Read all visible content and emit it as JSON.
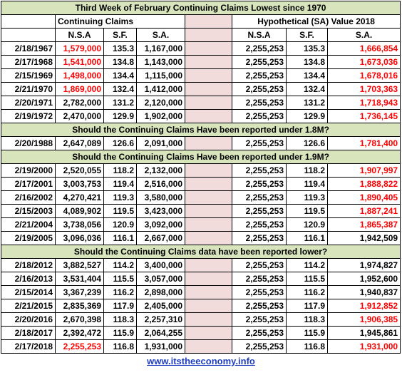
{
  "title": "Third Week of February Continuing Claims Lowest since 1970",
  "headers": {
    "left_group": "Continuing Claims",
    "right_group": "Hypothetical (SA) Value 2018",
    "columns": [
      "N.S.A",
      "S.F.",
      "S.A.",
      "N.S.A",
      "S.F.",
      "S.A."
    ]
  },
  "groups": [
    {
      "rows": [
        {
          "cells": [
            "2/18/1967",
            "1,579,000",
            "135.3",
            "1,167,000",
            "2,255,253",
            "135.3",
            "1,666,854"
          ],
          "red": [
            1,
            6
          ]
        },
        {
          "cells": [
            "2/17/1968",
            "1,541,000",
            "134.8",
            "1,143,000",
            "2,255,253",
            "134.8",
            "1,673,036"
          ],
          "red": [
            1,
            6
          ]
        },
        {
          "cells": [
            "2/15/1969",
            "1,498,000",
            "134.4",
            "1,115,000",
            "2,255,253",
            "134.4",
            "1,678,016"
          ],
          "red": [
            1,
            6
          ]
        },
        {
          "cells": [
            "2/21/1970",
            "1,869,000",
            "132.4",
            "1,412,000",
            "2,255,253",
            "132.4",
            "1,703,363"
          ],
          "red": [
            1,
            6
          ]
        },
        {
          "cells": [
            "2/20/1971",
            "2,782,000",
            "131.2",
            "2,120,000",
            "2,255,253",
            "131.2",
            "1,718,943"
          ],
          "red": [
            6
          ]
        },
        {
          "cells": [
            "2/19/1972",
            "2,470,000",
            "129.9",
            "1,902,000",
            "2,255,253",
            "129.9",
            "1,736,145"
          ],
          "red": [
            6
          ]
        }
      ]
    },
    {
      "heading": "Should the Continuing Claims Have been reported under 1.8M?",
      "rows": [
        {
          "cells": [
            "2/20/1988",
            "2,647,089",
            "126.6",
            "2,091,000",
            "2,255,253",
            "126.6",
            "1,781,400"
          ],
          "red": [
            6
          ]
        }
      ]
    },
    {
      "heading": "Should the Continuing Claims Have been reported under 1.9M?",
      "rows": [
        {
          "cells": [
            "2/19/2000",
            "2,520,055",
            "118.2",
            "2,132,000",
            "2,255,253",
            "118.2",
            "1,907,997"
          ],
          "red": [
            6
          ]
        },
        {
          "cells": [
            "2/17/2001",
            "3,003,753",
            "119.4",
            "2,516,000",
            "2,255,253",
            "119.4",
            "1,888,822"
          ],
          "red": [
            6
          ]
        },
        {
          "cells": [
            "2/16/2002",
            "4,270,421",
            "119.3",
            "3,580,000",
            "2,255,253",
            "119.3",
            "1,890,405"
          ],
          "red": [
            6
          ]
        },
        {
          "cells": [
            "2/15/2003",
            "4,089,902",
            "119.5",
            "3,423,000",
            "2,255,253",
            "119.5",
            "1,887,241"
          ],
          "red": [
            6
          ]
        },
        {
          "cells": [
            "2/21/2004",
            "3,738,056",
            "120.9",
            "3,092,000",
            "2,255,253",
            "120.9",
            "1,865,387"
          ],
          "red": [
            6
          ]
        },
        {
          "cells": [
            "2/19/2005",
            "3,096,036",
            "116.1",
            "2,667,000",
            "2,255,253",
            "116.1",
            "1,942,509"
          ],
          "red": []
        }
      ]
    },
    {
      "heading": "Should the Continuing Claims data have been reported lower?",
      "rows": [
        {
          "cells": [
            "2/18/2012",
            "3,882,527",
            "114.2",
            "3,400,000",
            "2,255,253",
            "114.2",
            "1,974,827"
          ],
          "red": []
        },
        {
          "cells": [
            "2/16/2013",
            "3,531,404",
            "115.5",
            "3,057,000",
            "2,255,253",
            "115.5",
            "1,952,600"
          ],
          "red": []
        },
        {
          "cells": [
            "2/15/2014",
            "3,367,239",
            "116.2",
            "2,898,000",
            "2,255,253",
            "116.2",
            "1,940,837"
          ],
          "red": []
        },
        {
          "cells": [
            "2/21/2015",
            "2,835,369",
            "117.9",
            "2,405,000",
            "2,255,253",
            "117.9",
            "1,912,852"
          ],
          "red": [
            6
          ]
        },
        {
          "cells": [
            "2/20/2016",
            "2,670,398",
            "118.3",
            "2,257,310",
            "2,255,253",
            "118.3",
            "1,906,385"
          ],
          "red": [
            6
          ]
        },
        {
          "cells": [
            "2/18/2017",
            "2,392,472",
            "115.9",
            "2,064,255",
            "2,255,253",
            "115.9",
            "1,945,861"
          ],
          "red": []
        },
        {
          "cells": [
            "2/17/2018",
            "2,255,253",
            "116.8",
            "1,931,000",
            "2,255,253",
            "116.8",
            "1,931,000"
          ],
          "red": [
            1,
            6
          ]
        }
      ]
    }
  ],
  "footer": "www.itstheeconomy.info"
}
